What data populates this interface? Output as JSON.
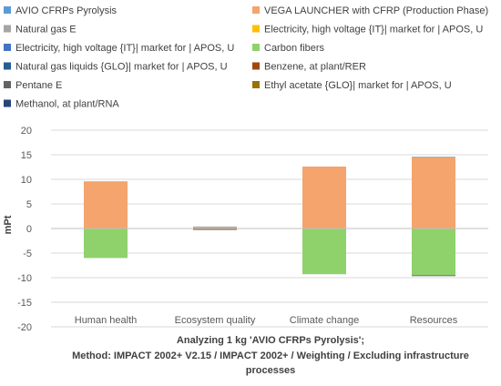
{
  "chart_data": {
    "type": "bar",
    "stacked": true,
    "title": "Analyzing 1 kg 'AVIO CFRPs Pyrolysis';",
    "subtitle_lines": [
      "Method: IMPACT 2002+ V2.15 / IMPACT 2002+ / Weighting / Excluding infrastructure",
      "processes"
    ],
    "ylabel": "mPt",
    "xlabel": "",
    "ylim": [
      -20,
      20
    ],
    "yticks": [
      20,
      15,
      10,
      5,
      0,
      -5,
      -10,
      -15,
      -20
    ],
    "grid": true,
    "legend_position": "top",
    "categories": [
      "Human health",
      "Ecosystem quality",
      "Climate change",
      "Resources"
    ],
    "series": [
      {
        "name": "AVIO CFRPs Pyrolysis",
        "color": "#5b9bd5",
        "values": [
          0,
          0,
          0,
          0
        ]
      },
      {
        "name": "VEGA LAUNCHER with CFRP (Production Phase)",
        "color": "#f4a46c",
        "values": [
          9.6,
          0.3,
          12.6,
          14.5
        ]
      },
      {
        "name": "Natural gas E",
        "color": "#a5a5a5",
        "values": [
          0,
          0.1,
          0,
          0.1
        ]
      },
      {
        "name": "Electricity, high voltage {IT}| market for | APOS, U",
        "color": "#ffc000",
        "values": [
          0,
          0,
          0,
          0
        ]
      },
      {
        "name": "Electricity, high voltage {IT}| market for | APOS, U",
        "color": "#4472c4",
        "values": [
          0,
          0,
          0,
          0
        ]
      },
      {
        "name": "Carbon fibers",
        "color": "#8fd16b",
        "values": [
          -6.0,
          -0.1,
          -9.3,
          -9.5
        ]
      },
      {
        "name": "Natural gas liquids {GLO}| market for | APOS, U",
        "color": "#255e91",
        "values": [
          0,
          0,
          0,
          0
        ]
      },
      {
        "name": "Benzene, at plant/RER",
        "color": "#9e480e",
        "values": [
          0,
          0,
          0,
          0
        ]
      },
      {
        "name": "Pentane E",
        "color": "#636363",
        "values": [
          0,
          -0.1,
          0,
          -0.1
        ]
      },
      {
        "name": "Ethyl acetate {GLO}| market for | APOS, U",
        "color": "#997300",
        "values": [
          0,
          0,
          0,
          0
        ]
      },
      {
        "name": "Methanol, at plant/RNA",
        "color": "#264478",
        "values": [
          0,
          0,
          0,
          0
        ]
      }
    ]
  }
}
